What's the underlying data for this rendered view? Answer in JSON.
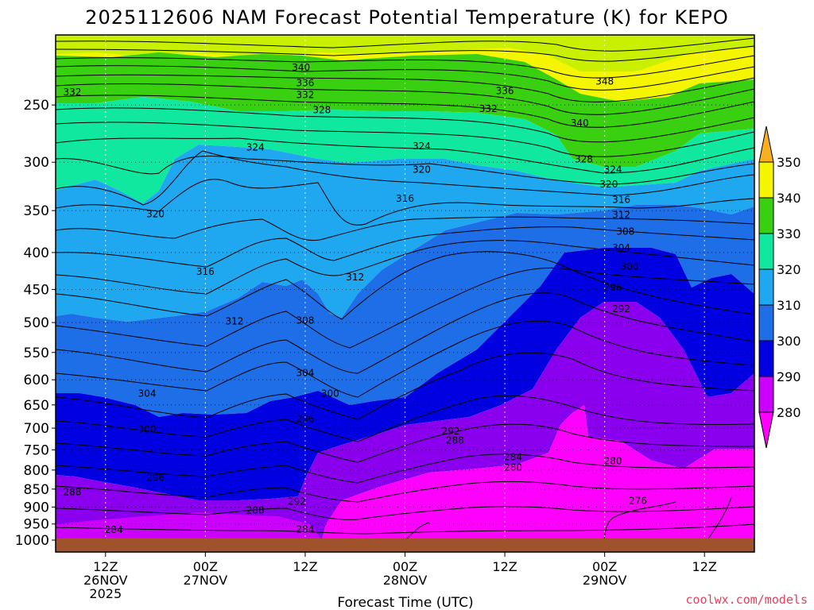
{
  "chart_data": {
    "type": "heatmap",
    "title": "2025112606 NAM Forecast Potential Temperature (K) for KEPO",
    "xlabel": "Forecast Time (UTC)",
    "ylabel": "",
    "y_ticks": [
      250,
      300,
      350,
      400,
      450,
      500,
      550,
      600,
      650,
      700,
      750,
      800,
      850,
      900,
      950,
      1000
    ],
    "y_range": [
      1000,
      200
    ],
    "x_ticks": [
      {
        "line1": "12Z",
        "line2": "26NOV",
        "line3": "2025",
        "hour": 12
      },
      {
        "line1": "00Z",
        "line2": "27NOV",
        "line3": "",
        "hour": 24
      },
      {
        "line1": "12Z",
        "line2": "",
        "line3": "",
        "hour": 36
      },
      {
        "line1": "00Z",
        "line2": "28NOV",
        "line3": "",
        "hour": 48
      },
      {
        "line1": "12Z",
        "line2": "",
        "line3": "",
        "hour": 60
      },
      {
        "line1": "00Z",
        "line2": "29NOV",
        "line3": "",
        "hour": 72
      },
      {
        "line1": "12Z",
        "line2": "",
        "line3": "",
        "hour": 84
      }
    ],
    "x_range": [
      6,
      90
    ],
    "colorbar": {
      "levels": [
        280,
        290,
        300,
        310,
        320,
        330,
        340,
        350
      ],
      "colors": [
        "#ff00ff",
        "#cc00ff",
        "#8a00ee",
        "#0000e0",
        "#1e6ee8",
        "#1fa8f0",
        "#10e8a0",
        "#38d010",
        "#c8f000",
        "#f5f500",
        "#f7b020"
      ]
    },
    "contour_labels": [
      {
        "text": "340",
        "t": 35.5,
        "p": 222
      },
      {
        "text": "336",
        "t": 36,
        "p": 233
      },
      {
        "text": "332",
        "t": 36,
        "p": 242
      },
      {
        "text": "332",
        "t": 8,
        "p": 240
      },
      {
        "text": "336",
        "t": 60,
        "p": 239
      },
      {
        "text": "332",
        "t": 58,
        "p": 253
      },
      {
        "text": "348",
        "t": 72,
        "p": 232
      },
      {
        "text": "340",
        "t": 69,
        "p": 265
      },
      {
        "text": "328",
        "t": 38,
        "p": 254
      },
      {
        "text": "324",
        "t": 30,
        "p": 286
      },
      {
        "text": "324",
        "t": 50,
        "p": 285
      },
      {
        "text": "328",
        "t": 69.5,
        "p": 297
      },
      {
        "text": "324",
        "t": 73,
        "p": 307
      },
      {
        "text": "320",
        "t": 50,
        "p": 307
      },
      {
        "text": "320",
        "t": 72.5,
        "p": 322
      },
      {
        "text": "316",
        "t": 48,
        "p": 337
      },
      {
        "text": "316",
        "t": 74,
        "p": 338
      },
      {
        "text": "312",
        "t": 74,
        "p": 355
      },
      {
        "text": "308",
        "t": 74.5,
        "p": 374
      },
      {
        "text": "304",
        "t": 74,
        "p": 394
      },
      {
        "text": "300",
        "t": 75,
        "p": 418
      },
      {
        "text": "296",
        "t": 73,
        "p": 447
      },
      {
        "text": "292",
        "t": 74,
        "p": 479
      },
      {
        "text": "320",
        "t": 18,
        "p": 354
      },
      {
        "text": "316",
        "t": 24,
        "p": 425
      },
      {
        "text": "312",
        "t": 42,
        "p": 433
      },
      {
        "text": "312",
        "t": 27.5,
        "p": 498
      },
      {
        "text": "308",
        "t": 36,
        "p": 497
      },
      {
        "text": "304",
        "t": 17,
        "p": 627
      },
      {
        "text": "304",
        "t": 36,
        "p": 587
      },
      {
        "text": "300",
        "t": 39,
        "p": 627
      },
      {
        "text": "300",
        "t": 17,
        "p": 703
      },
      {
        "text": "296",
        "t": 36,
        "p": 680
      },
      {
        "text": "296",
        "t": 18,
        "p": 820
      },
      {
        "text": "292",
        "t": 53.5,
        "p": 707
      },
      {
        "text": "288",
        "t": 54,
        "p": 728
      },
      {
        "text": "284",
        "t": 61,
        "p": 768
      },
      {
        "text": "280",
        "t": 61,
        "p": 793
      },
      {
        "text": "280",
        "t": 73,
        "p": 777
      },
      {
        "text": "276",
        "t": 76,
        "p": 882
      },
      {
        "text": "288",
        "t": 8,
        "p": 858
      },
      {
        "text": "292",
        "t": 35,
        "p": 885
      },
      {
        "text": "288",
        "t": 30,
        "p": 909
      },
      {
        "text": "284",
        "t": 13,
        "p": 968
      },
      {
        "text": "284",
        "t": 36,
        "p": 967
      }
    ]
  },
  "credit": "coolwx.com/models"
}
